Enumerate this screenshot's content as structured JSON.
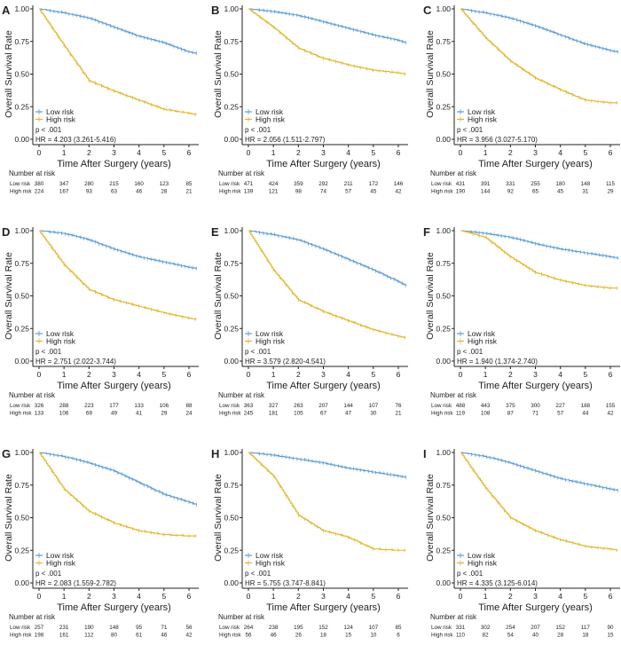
{
  "colors": {
    "low": "#5b9bd5",
    "high": "#e3b529",
    "axis": "#222222"
  },
  "chart_data": [
    {
      "type": "line",
      "panel": "A",
      "xlabel": "Time After Surgery (years)",
      "ylabel": "Overall Survival Rate",
      "xlim": [
        0,
        6.3
      ],
      "ylim": [
        0,
        1
      ],
      "xticks": [
        "0",
        "1",
        "2",
        "3",
        "4",
        "5",
        "6"
      ],
      "yticks": [
        "0.00",
        "0.25",
        "0.50",
        "0.75",
        "1.00"
      ],
      "legend": [
        "Low risk",
        "High risk"
      ],
      "p_text": "p < .001",
      "hr_text": "HR = 4.203 (3.261-5.416)",
      "series": [
        {
          "name": "Low risk",
          "x": [
            0,
            1,
            2,
            3,
            4,
            5,
            6,
            6.3
          ],
          "y": [
            1,
            0.97,
            0.93,
            0.86,
            0.79,
            0.74,
            0.67,
            0.66
          ]
        },
        {
          "name": "High risk",
          "x": [
            0,
            1,
            2,
            3,
            4,
            5,
            6,
            6.3
          ],
          "y": [
            1,
            0.72,
            0.45,
            0.37,
            0.3,
            0.23,
            0.2,
            0.19
          ]
        }
      ],
      "risk_table": {
        "title": "Number at risk",
        "rows": [
          {
            "label": "Low risk",
            "values": [
              "380",
              "347",
              "280",
              "215",
              "160",
              "123",
              "85"
            ]
          },
          {
            "label": "High risk",
            "values": [
              "224",
              "167",
              "93",
              "63",
              "46",
              "28",
              "21"
            ]
          }
        ]
      }
    },
    {
      "type": "line",
      "panel": "B",
      "xlabel": "Time After Surgery (years)",
      "ylabel": "Overall Survival Rate",
      "xlim": [
        0,
        6.3
      ],
      "ylim": [
        0,
        1
      ],
      "xticks": [
        "0",
        "1",
        "2",
        "3",
        "4",
        "5",
        "6"
      ],
      "yticks": [
        "0.00",
        "0.25",
        "0.50",
        "0.75",
        "1.00"
      ],
      "legend": [
        "Low risk",
        "High risk"
      ],
      "p_text": "p < .001",
      "hr_text": "HR = 2.056 (1.511-2.797)",
      "series": [
        {
          "name": "Low risk",
          "x": [
            0,
            1,
            2,
            3,
            4,
            5,
            6,
            6.3
          ],
          "y": [
            1,
            0.98,
            0.95,
            0.9,
            0.85,
            0.8,
            0.76,
            0.74
          ]
        },
        {
          "name": "High risk",
          "x": [
            0,
            1,
            2,
            3,
            4,
            5,
            6,
            6.3
          ],
          "y": [
            1,
            0.86,
            0.7,
            0.62,
            0.57,
            0.53,
            0.51,
            0.5
          ]
        }
      ],
      "risk_table": {
        "title": "Number at risk",
        "rows": [
          {
            "label": "Low risk",
            "values": [
              "471",
              "424",
              "359",
              "292",
              "211",
              "172",
              "146"
            ]
          },
          {
            "label": "High risk",
            "values": [
              "139",
              "121",
              "98",
              "74",
              "57",
              "45",
              "42"
            ]
          }
        ]
      }
    },
    {
      "type": "line",
      "panel": "C",
      "xlabel": "Time After Surgery (years)",
      "ylabel": "Overall Survival Rate",
      "xlim": [
        0,
        6.3
      ],
      "ylim": [
        0,
        1
      ],
      "xticks": [
        "0",
        "1",
        "2",
        "3",
        "4",
        "5",
        "6"
      ],
      "yticks": [
        "0.00",
        "0.25",
        "0.50",
        "0.75",
        "1.00"
      ],
      "legend": [
        "Low risk",
        "High risk"
      ],
      "p_text": "p < .001",
      "hr_text": "HR = 3.956 (3.027-5.170)",
      "series": [
        {
          "name": "Low risk",
          "x": [
            0,
            1,
            2,
            3,
            4,
            5,
            6,
            6.3
          ],
          "y": [
            1,
            0.97,
            0.93,
            0.87,
            0.8,
            0.73,
            0.68,
            0.67
          ]
        },
        {
          "name": "High risk",
          "x": [
            0,
            1,
            2,
            3,
            4,
            5,
            6,
            6.3
          ],
          "y": [
            1,
            0.78,
            0.6,
            0.47,
            0.38,
            0.3,
            0.28,
            0.28
          ]
        }
      ],
      "risk_table": {
        "title": "Number at risk",
        "rows": [
          {
            "label": "Low risk",
            "values": [
              "431",
              "391",
              "331",
              "255",
              "180",
              "148",
              "115"
            ]
          },
          {
            "label": "High risk",
            "values": [
              "190",
              "144",
              "92",
              "65",
              "45",
              "31",
              "29"
            ]
          }
        ]
      }
    },
    {
      "type": "line",
      "panel": "D",
      "xlabel": "Time After Surgery (years)",
      "ylabel": "Overall Survival Rate",
      "xlim": [
        0,
        6.3
      ],
      "ylim": [
        0,
        1
      ],
      "xticks": [
        "0",
        "1",
        "2",
        "3",
        "4",
        "5",
        "6"
      ],
      "yticks": [
        "0.00",
        "0.25",
        "0.50",
        "0.75",
        "1.00"
      ],
      "legend": [
        "Low risk",
        "High risk"
      ],
      "p_text": "p < .001",
      "hr_text": "HR = 2.751 (2.022-3.744)",
      "series": [
        {
          "name": "Low risk",
          "x": [
            0,
            1,
            2,
            3,
            4,
            5,
            6,
            6.3
          ],
          "y": [
            1,
            0.98,
            0.93,
            0.86,
            0.8,
            0.76,
            0.72,
            0.71
          ]
        },
        {
          "name": "High risk",
          "x": [
            0,
            1,
            2,
            3,
            4,
            5,
            6,
            6.3
          ],
          "y": [
            1,
            0.74,
            0.55,
            0.47,
            0.42,
            0.37,
            0.33,
            0.32
          ]
        }
      ],
      "risk_table": {
        "title": "Number at risk",
        "rows": [
          {
            "label": "Low risk",
            "values": [
              "326",
              "288",
              "223",
              "177",
              "133",
              "106",
              "88"
            ]
          },
          {
            "label": "High risk",
            "values": [
              "133",
              "106",
              "69",
              "49",
              "41",
              "29",
              "24"
            ]
          }
        ]
      }
    },
    {
      "type": "line",
      "panel": "E",
      "xlabel": "Time After Surgery (years)",
      "ylabel": "Overall Survival Rate",
      "xlim": [
        0,
        6.3
      ],
      "ylim": [
        0,
        1
      ],
      "xticks": [
        "0",
        "1",
        "2",
        "3",
        "4",
        "5",
        "6"
      ],
      "yticks": [
        "0.00",
        "0.25",
        "0.50",
        "0.75",
        "1.00"
      ],
      "legend": [
        "Low risk",
        "High risk"
      ],
      "p_text": "p < .001",
      "hr_text": "HR = 3.579 (2.820-4.541)",
      "series": [
        {
          "name": "Low risk",
          "x": [
            0,
            1,
            2,
            3,
            4,
            5,
            6,
            6.3
          ],
          "y": [
            1,
            0.97,
            0.93,
            0.86,
            0.78,
            0.7,
            0.61,
            0.58
          ]
        },
        {
          "name": "High risk",
          "x": [
            0,
            1,
            2,
            3,
            4,
            5,
            6,
            6.3
          ],
          "y": [
            1,
            0.7,
            0.47,
            0.38,
            0.31,
            0.24,
            0.19,
            0.18
          ]
        }
      ],
      "risk_table": {
        "title": "Number at risk",
        "rows": [
          {
            "label": "Low risk",
            "values": [
              "363",
              "327",
              "263",
              "207",
              "144",
              "107",
              "76"
            ]
          },
          {
            "label": "High risk",
            "values": [
              "245",
              "181",
              "105",
              "67",
              "47",
              "30",
              "21"
            ]
          }
        ]
      }
    },
    {
      "type": "line",
      "panel": "F",
      "xlabel": "Time After Surgery (years)",
      "ylabel": "Overall Survival Rate",
      "xlim": [
        0,
        6.3
      ],
      "ylim": [
        0,
        1
      ],
      "xticks": [
        "0",
        "1",
        "2",
        "3",
        "4",
        "5",
        "6"
      ],
      "yticks": [
        "0.00",
        "0.25",
        "0.50",
        "0.75",
        "1.00"
      ],
      "legend": [
        "Low risk",
        "High risk"
      ],
      "p_text": "p < .001",
      "hr_text": "HR = 1.940 (1.374-2.740)",
      "series": [
        {
          "name": "Low risk",
          "x": [
            0,
            1,
            2,
            3,
            4,
            5,
            6,
            6.3
          ],
          "y": [
            1,
            0.98,
            0.95,
            0.9,
            0.86,
            0.83,
            0.8,
            0.79
          ]
        },
        {
          "name": "High risk",
          "x": [
            0,
            1,
            2,
            3,
            4,
            5,
            6,
            6.3
          ],
          "y": [
            1,
            0.95,
            0.8,
            0.68,
            0.62,
            0.58,
            0.56,
            0.56
          ]
        }
      ],
      "risk_table": {
        "title": "Number at risk",
        "rows": [
          {
            "label": "Low risk",
            "values": [
              "488",
              "443",
              "375",
              "300",
              "227",
              "188",
              "155"
            ]
          },
          {
            "label": "High risk",
            "values": [
              "119",
              "108",
              "87",
              "71",
              "57",
              "44",
              "42"
            ]
          }
        ]
      }
    },
    {
      "type": "line",
      "panel": "G",
      "xlabel": "Time After Surgery (years)",
      "ylabel": "Overall Survival Rate",
      "xlim": [
        0,
        6.3
      ],
      "ylim": [
        0,
        1
      ],
      "xticks": [
        "0",
        "1",
        "2",
        "3",
        "4",
        "5",
        "6"
      ],
      "yticks": [
        "0.00",
        "0.25",
        "0.50",
        "0.75",
        "1.00"
      ],
      "legend": [
        "Low risk",
        "High risk"
      ],
      "p_text": "p < .001",
      "hr_text": "HR = 2.083 (1.559-2.782)",
      "series": [
        {
          "name": "Low risk",
          "x": [
            0,
            1,
            2,
            3,
            4,
            5,
            6,
            6.3
          ],
          "y": [
            1,
            0.97,
            0.92,
            0.86,
            0.77,
            0.68,
            0.62,
            0.6
          ]
        },
        {
          "name": "High risk",
          "x": [
            0,
            1,
            2,
            3,
            4,
            5,
            6,
            6.3
          ],
          "y": [
            1,
            0.72,
            0.55,
            0.46,
            0.4,
            0.37,
            0.36,
            0.36
          ]
        }
      ],
      "risk_table": {
        "title": "Number at risk",
        "rows": [
          {
            "label": "Low risk",
            "values": [
              "257",
              "231",
              "190",
              "148",
              "95",
              "71",
              "56"
            ]
          },
          {
            "label": "High risk",
            "values": [
              "198",
              "161",
              "112",
              "80",
              "61",
              "46",
              "42"
            ]
          }
        ]
      }
    },
    {
      "type": "line",
      "panel": "H",
      "xlabel": "Time After Surgery (years)",
      "ylabel": "Overall Survival Rate",
      "xlim": [
        0,
        6.3
      ],
      "ylim": [
        0,
        1
      ],
      "xticks": [
        "0",
        "1",
        "2",
        "3",
        "4",
        "5",
        "6"
      ],
      "yticks": [
        "0.00",
        "0.25",
        "0.50",
        "0.75",
        "1.00"
      ],
      "legend": [
        "Low risk",
        "High risk"
      ],
      "p_text": "p < .001",
      "hr_text": "HR = 5.755 (3.747-8.841)",
      "series": [
        {
          "name": "Low risk",
          "x": [
            0,
            1,
            2,
            3,
            4,
            5,
            6,
            6.3
          ],
          "y": [
            1,
            0.98,
            0.95,
            0.92,
            0.88,
            0.85,
            0.82,
            0.81
          ]
        },
        {
          "name": "High risk",
          "x": [
            0,
            1,
            2,
            3,
            4,
            5,
            6,
            6.3
          ],
          "y": [
            1,
            0.82,
            0.52,
            0.4,
            0.35,
            0.26,
            0.25,
            0.25
          ]
        }
      ],
      "risk_table": {
        "title": "Number at risk",
        "rows": [
          {
            "label": "Low risk",
            "values": [
              "264",
              "238",
              "195",
              "152",
              "124",
              "107",
              "85"
            ]
          },
          {
            "label": "High risk",
            "values": [
              "56",
              "46",
              "26",
              "18",
              "15",
              "10",
              "6"
            ]
          }
        ]
      }
    },
    {
      "type": "line",
      "panel": "I",
      "xlabel": "Time After Surgery (years)",
      "ylabel": "Overall Survival Rate",
      "xlim": [
        0,
        6.3
      ],
      "ylim": [
        0,
        1
      ],
      "xticks": [
        "0",
        "1",
        "2",
        "3",
        "4",
        "5",
        "6"
      ],
      "yticks": [
        "0.00",
        "0.25",
        "0.50",
        "0.75",
        "1.00"
      ],
      "legend": [
        "Low risk",
        "High risk"
      ],
      "p_text": "p < .001",
      "hr_text": "HR = 4.335 (3.125-6.014)",
      "series": [
        {
          "name": "Low risk",
          "x": [
            0,
            1,
            2,
            3,
            4,
            5,
            6,
            6.3
          ],
          "y": [
            1,
            0.97,
            0.92,
            0.86,
            0.8,
            0.76,
            0.72,
            0.71
          ]
        },
        {
          "name": "High risk",
          "x": [
            0,
            1,
            2,
            3,
            4,
            5,
            6,
            6.3
          ],
          "y": [
            1,
            0.73,
            0.5,
            0.4,
            0.33,
            0.28,
            0.26,
            0.25
          ]
        }
      ],
      "risk_table": {
        "title": "Number at risk",
        "rows": [
          {
            "label": "Low risk",
            "values": [
              "331",
              "302",
              "254",
              "207",
              "152",
              "117",
              "90"
            ]
          },
          {
            "label": "High risk",
            "values": [
              "110",
              "82",
              "54",
              "40",
              "28",
              "18",
              "15"
            ]
          }
        ]
      }
    }
  ]
}
